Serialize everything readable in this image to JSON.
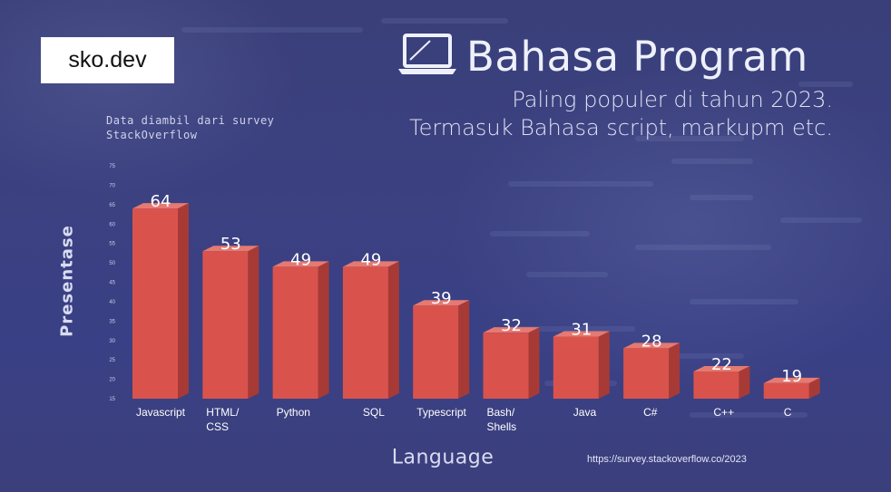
{
  "brand": "sko.dev",
  "header": {
    "title": "Bahasa Program",
    "subtitle_line1": "Paling populer di tahun 2023.",
    "subtitle_line2": "Termasuk Bahasa script, markupm etc."
  },
  "note": {
    "line1": "Data diambil dari survey",
    "line2": "StackOverflow"
  },
  "source": "https://survey.stackoverflow.co/2023",
  "icons": {
    "title_icon": "laptop-icon"
  },
  "colors": {
    "bar_front": "#d9534c",
    "bar_side": "#a83a36",
    "bar_top": "#e57a72"
  },
  "chart_data": {
    "type": "bar",
    "title": "Bahasa Program",
    "xlabel": "Language",
    "ylabel": "Presentase",
    "categories": [
      "Javascript",
      "HTML/ CSS",
      "Python",
      "SQL",
      "Typescript",
      "Bash/ Shells",
      "Java",
      "C#",
      "C++",
      "C"
    ],
    "category_lines": [
      [
        "Javascript"
      ],
      [
        "HTML/",
        "CSS"
      ],
      [
        "Python"
      ],
      [
        "SQL"
      ],
      [
        "Typescript"
      ],
      [
        "Bash/",
        "Shells"
      ],
      [
        "Java"
      ],
      [
        "C#"
      ],
      [
        "C++"
      ],
      [
        "C"
      ]
    ],
    "values": [
      64,
      53,
      49,
      49,
      39,
      32,
      31,
      28,
      22,
      19
    ],
    "ylim": [
      15,
      75
    ],
    "yticks": [
      15,
      20,
      25,
      30,
      35,
      40,
      45,
      50,
      55,
      60,
      65,
      70,
      75
    ],
    "grid": false,
    "legend": "none"
  }
}
